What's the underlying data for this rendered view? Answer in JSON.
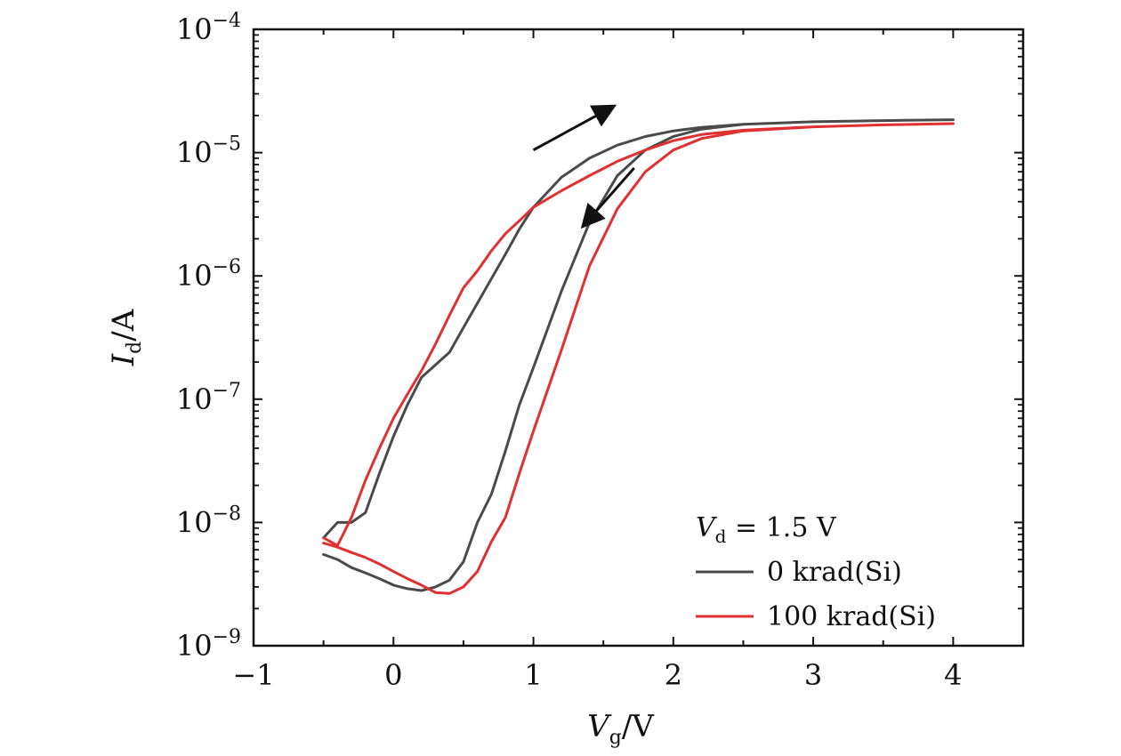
{
  "chart_data": {
    "type": "line",
    "title": "",
    "xlabel": {
      "main": "V",
      "sub": "g",
      "unit": "/V"
    },
    "ylabel": {
      "main": "I",
      "sub": "d",
      "unit": "/A"
    },
    "xlim": [
      -1,
      4.5
    ],
    "ylim": [
      1e-09,
      0.0001
    ],
    "yscale": "log",
    "x_ticks": [
      {
        "value": -1,
        "label": "−1"
      },
      {
        "value": 0,
        "label": "0"
      },
      {
        "value": 1,
        "label": "1"
      },
      {
        "value": 2,
        "label": "2"
      },
      {
        "value": 3,
        "label": "3"
      },
      {
        "value": 4,
        "label": "4"
      }
    ],
    "y_ticks": [
      {
        "value": 1e-09,
        "base": "10",
        "exp": "−9"
      },
      {
        "value": 1e-08,
        "base": "10",
        "exp": "−8"
      },
      {
        "value": 1e-07,
        "base": "10",
        "exp": "−7"
      },
      {
        "value": 1e-06,
        "base": "10",
        "exp": "−6"
      },
      {
        "value": 1e-05,
        "base": "10",
        "exp": "−5"
      },
      {
        "value": 0.0001,
        "base": "10",
        "exp": "−4"
      }
    ],
    "legend": {
      "placement": "bottom-right",
      "title": {
        "main": "V",
        "sub": "d",
        "rest": " = 1.5 V"
      }
    },
    "series": [
      {
        "name": "0 krad(Si)",
        "color": "#4a4a4a",
        "x": [
          -0.5,
          -0.4,
          -0.3,
          -0.2,
          -0.1,
          0,
          0.1,
          0.2,
          0.3,
          0.4,
          0.5,
          0.6,
          0.7,
          0.8,
          0.9,
          1.0,
          1.2,
          1.4,
          1.6,
          1.8,
          2.0,
          2.2,
          2.5,
          3.0,
          3.5,
          4.0,
          4.0,
          3.5,
          3.0,
          2.5,
          2.2,
          2.0,
          1.8,
          1.6,
          1.4,
          1.2,
          1.0,
          0.9,
          0.8,
          0.7,
          0.6,
          0.5,
          0.4,
          0.2,
          0.1,
          0,
          -0.1,
          -0.2,
          -0.3,
          -0.4,
          -0.5
        ],
        "y": [
          5.5e-09,
          5e-09,
          4.3e-09,
          3.9e-09,
          3.5e-09,
          3.1e-09,
          2.9e-09,
          2.8e-09,
          3e-09,
          3.4e-09,
          4.8e-09,
          1e-08,
          1.7e-08,
          3.8e-08,
          9e-08,
          1.8e-07,
          7.5e-07,
          2.7e-06,
          6.5e-06,
          1.05e-05,
          1.35e-05,
          1.55e-05,
          1.7e-05,
          1.78e-05,
          1.82e-05,
          1.85e-05,
          1.85e-05,
          1.82e-05,
          1.78e-05,
          1.7e-05,
          1.6e-05,
          1.5e-05,
          1.35e-05,
          1.15e-05,
          9e-06,
          6.3e-06,
          3.6e-06,
          2.4e-06,
          1.5e-06,
          9.5e-07,
          6e-07,
          3.8e-07,
          2.4e-07,
          1.5e-07,
          9e-08,
          5e-08,
          2.5e-08,
          1.2e-08,
          1e-08,
          1e-08,
          7.5e-09
        ]
      },
      {
        "name": "100 krad(Si)",
        "color": "#e03030",
        "x": [
          -0.5,
          -0.4,
          -0.3,
          -0.2,
          -0.1,
          0,
          0.1,
          0.2,
          0.3,
          0.4,
          0.5,
          0.6,
          0.7,
          0.8,
          0.9,
          1.0,
          1.2,
          1.4,
          1.6,
          1.8,
          2.0,
          2.2,
          2.5,
          3.0,
          3.5,
          4.0,
          4.0,
          3.5,
          3.0,
          2.5,
          2.2,
          2.0,
          1.8,
          1.6,
          1.4,
          1.2,
          1.0,
          0.9,
          0.8,
          0.7,
          0.6,
          0.5,
          0.4,
          0.3,
          0.2,
          0.1,
          0,
          -0.1,
          -0.2,
          -0.3,
          -0.4,
          -0.5
        ],
        "y": [
          6.8e-09,
          6.3e-09,
          5.7e-09,
          5.2e-09,
          4.6e-09,
          4e-09,
          3.5e-09,
          3.1e-09,
          2.7e-09,
          2.65e-09,
          3e-09,
          4e-09,
          7e-09,
          1.1e-08,
          2.5e-08,
          5.5e-08,
          2.5e-07,
          1.2e-06,
          3.5e-06,
          7e-06,
          1.05e-05,
          1.3e-05,
          1.5e-05,
          1.62e-05,
          1.68e-05,
          1.72e-05,
          1.72e-05,
          1.68e-05,
          1.62e-05,
          1.52e-05,
          1.4e-05,
          1.25e-05,
          1.05e-05,
          8.5e-06,
          6.5e-06,
          4.9e-06,
          3.6e-06,
          2.8e-06,
          2.2e-06,
          1.6e-06,
          1.1e-06,
          8e-07,
          4.8e-07,
          2.8e-07,
          1.7e-07,
          1.1e-07,
          7e-08,
          4e-08,
          2.2e-08,
          1.1e-08,
          6.5e-09,
          7.5e-09
        ]
      }
    ],
    "annotations": [
      {
        "type": "arrow",
        "meaning": "forward sweep",
        "from": [
          1.0,
          1.05e-05
        ],
        "to": [
          1.58,
          2.4e-05
        ]
      },
      {
        "type": "arrow",
        "meaning": "reverse sweep",
        "from": [
          1.72,
          7.5e-06
        ],
        "to": [
          1.35,
          2.5e-06
        ]
      }
    ]
  }
}
